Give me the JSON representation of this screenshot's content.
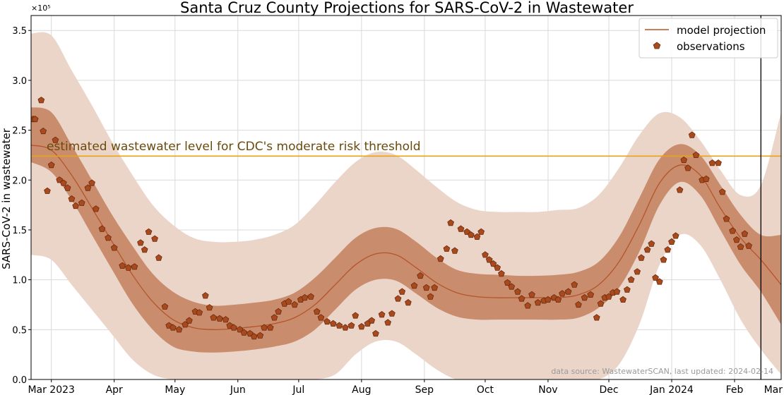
{
  "chart_data": {
    "type": "line",
    "title": "Santa Cruz County Projections for SARS-CoV-2 in Wastewater",
    "ylabel": "SARS-CoV-2 in wastewater",
    "xlabel": "",
    "y_multiplier_label": "×10⁵",
    "ylim": [
      0,
      3.65
    ],
    "xlim": [
      0,
      370
    ],
    "y_ticks": [
      0.0,
      0.5,
      1.0,
      1.5,
      2.0,
      2.5,
      3.0,
      3.5
    ],
    "y_tick_labels": [
      "0.0",
      "0.5",
      "1.0",
      "1.5",
      "2.0",
      "2.5",
      "3.0",
      "3.5"
    ],
    "x_ticks": [
      {
        "x": 10,
        "label": "Mar 2023"
      },
      {
        "x": 41,
        "label": "Apr"
      },
      {
        "x": 71,
        "label": "May"
      },
      {
        "x": 102,
        "label": "Jun"
      },
      {
        "x": 132,
        "label": "Jul"
      },
      {
        "x": 163,
        "label": "Aug"
      },
      {
        "x": 194,
        "label": "Sep"
      },
      {
        "x": 224,
        "label": "Oct"
      },
      {
        "x": 255,
        "label": "Nov"
      },
      {
        "x": 285,
        "label": "Dec"
      },
      {
        "x": 316,
        "label": "Jan 2024"
      },
      {
        "x": 347,
        "label": "Feb"
      },
      {
        "x": 376,
        "label": "Mar"
      }
    ],
    "threshold": {
      "value": 2.24,
      "label": "estimated wastewater level for CDC's moderate risk threshold",
      "color": "#E8A317"
    },
    "last_updated_x": 360,
    "source_note": "data source: WastewaterSCAN, last updated: 2024-02-14",
    "legend": {
      "placement": "top-right",
      "projection_label": "model projection",
      "observations_label": "observations"
    },
    "colors": {
      "line": "#B5542A",
      "marker_fill": "#A84A1E",
      "marker_edge": "#6B2A0C",
      "inner_band": "#C98D6E",
      "outer_band": "#EBD5C9",
      "grid": "#D9D9D9",
      "vline": "#000000"
    },
    "projection": {
      "x": [
        0,
        10,
        20,
        30,
        40,
        50,
        60,
        70,
        80,
        90,
        100,
        110,
        120,
        130,
        140,
        150,
        160,
        170,
        180,
        190,
        200,
        210,
        220,
        230,
        240,
        250,
        260,
        270,
        280,
        290,
        300,
        310,
        320,
        330,
        340,
        350,
        360,
        370
      ],
      "y": [
        2.35,
        2.3,
        2.05,
        1.72,
        1.38,
        1.05,
        0.78,
        0.6,
        0.52,
        0.5,
        0.51,
        0.53,
        0.56,
        0.62,
        0.75,
        0.95,
        1.15,
        1.26,
        1.25,
        1.12,
        0.97,
        0.87,
        0.83,
        0.82,
        0.82,
        0.82,
        0.82,
        0.85,
        0.95,
        1.18,
        1.55,
        1.97,
        2.15,
        2.05,
        1.72,
        1.42,
        1.2,
        0.95
      ],
      "inner_lower": [
        2.18,
        2.08,
        1.8,
        1.45,
        1.1,
        0.76,
        0.5,
        0.33,
        0.28,
        0.27,
        0.28,
        0.3,
        0.33,
        0.38,
        0.5,
        0.7,
        0.9,
        1.0,
        0.99,
        0.86,
        0.72,
        0.63,
        0.6,
        0.6,
        0.6,
        0.6,
        0.6,
        0.62,
        0.72,
        0.92,
        1.28,
        1.75,
        1.98,
        1.85,
        1.5,
        1.15,
        0.88,
        0.55
      ],
      "inner_upper": [
        2.73,
        2.68,
        2.35,
        2.0,
        1.65,
        1.34,
        1.06,
        0.88,
        0.78,
        0.74,
        0.75,
        0.77,
        0.8,
        0.87,
        1.02,
        1.22,
        1.42,
        1.52,
        1.51,
        1.38,
        1.22,
        1.1,
        1.06,
        1.05,
        1.04,
        1.04,
        1.05,
        1.08,
        1.18,
        1.43,
        1.82,
        2.21,
        2.36,
        2.25,
        1.95,
        1.65,
        1.45,
        1.45
      ],
      "outer_lower": [
        1.25,
        1.2,
        0.95,
        0.7,
        0.45,
        0.2,
        0.05,
        0.0,
        0.0,
        0.0,
        0.0,
        0.0,
        0.0,
        0.0,
        0.0,
        0.05,
        0.25,
        0.38,
        0.38,
        0.25,
        0.1,
        0.0,
        0.0,
        0.0,
        0.0,
        0.0,
        0.0,
        0.0,
        0.0,
        0.15,
        0.55,
        1.15,
        1.45,
        1.35,
        1.0,
        0.6,
        0.3,
        0.05
      ],
      "outer_upper": [
        3.47,
        3.45,
        3.1,
        2.75,
        2.38,
        2.05,
        1.75,
        1.55,
        1.42,
        1.38,
        1.38,
        1.4,
        1.45,
        1.55,
        1.75,
        1.98,
        2.18,
        2.28,
        2.25,
        2.1,
        1.93,
        1.78,
        1.7,
        1.68,
        1.68,
        1.68,
        1.7,
        1.72,
        1.85,
        2.12,
        2.45,
        2.67,
        2.63,
        2.4,
        2.1,
        1.85,
        1.95,
        2.68
      ]
    },
    "observations": {
      "x": [
        1,
        2,
        5,
        6,
        8,
        10,
        12,
        14,
        16,
        18,
        20,
        22,
        25,
        28,
        30,
        32,
        35,
        38,
        41,
        45,
        48,
        51,
        54,
        56,
        58,
        61,
        63,
        66,
        68,
        70,
        73,
        76,
        78,
        81,
        83,
        86,
        88,
        90,
        93,
        96,
        98,
        100,
        103,
        105,
        108,
        110,
        113,
        115,
        118,
        120,
        122,
        125,
        127,
        130,
        133,
        135,
        138,
        141,
        143,
        146,
        149,
        152,
        155,
        158,
        160,
        163,
        166,
        168,
        170,
        173,
        176,
        178,
        181,
        183,
        186,
        189,
        192,
        195,
        197,
        199,
        202,
        205,
        207,
        209,
        212,
        215,
        217,
        220,
        222,
        224,
        226,
        228,
        230,
        232,
        235,
        237,
        240,
        242,
        245,
        247,
        250,
        253,
        255,
        258,
        260,
        262,
        265,
        268,
        270,
        273,
        276,
        279,
        281,
        283,
        285,
        287,
        289,
        292,
        294,
        296,
        299,
        301,
        304,
        306,
        308,
        310,
        312,
        314,
        316,
        318,
        320,
        322,
        324,
        326,
        328,
        331,
        333,
        336,
        339,
        341,
        343,
        346,
        348,
        350,
        352,
        354
      ],
      "y": [
        2.61,
        2.61,
        2.8,
        2.49,
        1.89,
        2.15,
        2.4,
        2.0,
        1.97,
        1.92,
        1.81,
        1.74,
        1.77,
        1.92,
        1.97,
        1.71,
        1.51,
        1.42,
        1.32,
        1.14,
        1.12,
        1.13,
        1.37,
        1.3,
        1.48,
        1.41,
        1.22,
        0.73,
        0.54,
        0.52,
        0.5,
        0.55,
        0.59,
        0.68,
        0.67,
        0.84,
        0.72,
        0.62,
        0.61,
        0.6,
        0.54,
        0.52,
        0.5,
        0.47,
        0.46,
        0.43,
        0.44,
        0.52,
        0.52,
        0.62,
        0.68,
        0.76,
        0.78,
        0.75,
        0.8,
        0.82,
        0.83,
        0.68,
        0.62,
        0.58,
        0.56,
        0.54,
        0.52,
        0.54,
        0.64,
        0.53,
        0.56,
        0.59,
        0.46,
        0.65,
        0.57,
        0.66,
        0.81,
        0.88,
        0.77,
        0.94,
        1.04,
        0.92,
        0.83,
        0.92,
        1.21,
        1.31,
        1.57,
        1.29,
        1.51,
        1.48,
        1.45,
        1.43,
        1.48,
        1.25,
        1.2,
        1.16,
        1.12,
        1.06,
        0.97,
        0.93,
        0.88,
        0.81,
        0.74,
        0.85,
        0.77,
        0.79,
        0.8,
        0.82,
        0.8,
        0.86,
        0.88,
        0.95,
        0.75,
        0.82,
        0.85,
        0.62,
        0.76,
        0.82,
        0.83,
        0.87,
        0.88,
        0.8,
        0.9,
        1.0,
        1.08,
        1.22,
        1.3,
        1.36,
        1.02,
        0.98,
        1.2,
        1.3,
        1.38,
        1.44,
        1.9,
        2.2,
        2.12,
        2.45,
        2.25,
        2.0,
        2.01,
        2.17,
        2.17,
        1.88,
        1.61,
        1.49,
        1.4,
        1.33,
        1.46,
        1.34
      ]
    }
  }
}
